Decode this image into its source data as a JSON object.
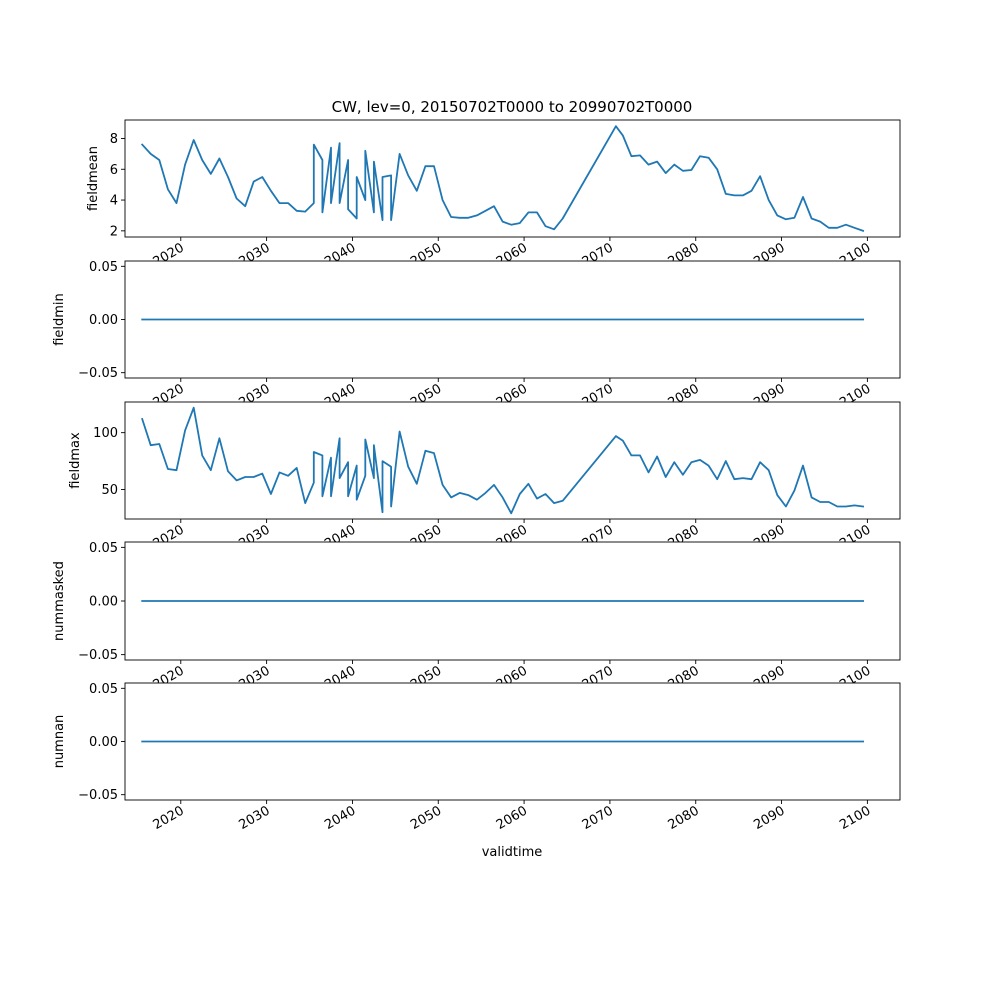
{
  "figure": {
    "title": "CW, lev=0, 20150702T0000 to 20990702T0000",
    "xlabel": "validtime",
    "line_color": "#1f77b4"
  },
  "chart_data": [
    {
      "type": "line",
      "ylabel": "fieldmean",
      "xlim": [
        2013.5,
        2103.8
      ],
      "ylim": [
        1.6,
        9.2
      ],
      "yticks": [
        2,
        4,
        6,
        8
      ],
      "ytick_labels": [
        "2",
        "4",
        "6",
        "8"
      ],
      "xticks": [
        2020,
        2030,
        2040,
        2050,
        2060,
        2070,
        2080,
        2090,
        2100
      ],
      "xtick_labels": [
        "2020",
        "2030",
        "2040",
        "2050",
        "2060",
        "2070",
        "2080",
        "2090",
        "2100"
      ],
      "x": [
        2015.5,
        2016.5,
        2017.5,
        2018.5,
        2019.5,
        2020.5,
        2021.5,
        2022.5,
        2023.5,
        2024.5,
        2025.5,
        2026.5,
        2027.5,
        2028.5,
        2029.5,
        2030.5,
        2031.5,
        2032.5,
        2033.5,
        2034.5,
        2035.5,
        2035.5,
        2036.5,
        2036.5,
        2037.5,
        2037.5,
        2038.5,
        2038.5,
        2039.5,
        2039.5,
        2040.5,
        2040.5,
        2041.5,
        2041.5,
        2042.5,
        2042.5,
        2043.5,
        2043.5,
        2044.5,
        2044.5,
        2045.5,
        2046.5,
        2047.5,
        2048.5,
        2049.5,
        2050.5,
        2051.5,
        2052.5,
        2053.5,
        2054.5,
        2055.5,
        2056.5,
        2057.5,
        2058.5,
        2059.5,
        2060.5,
        2061.5,
        2062.5,
        2063.5,
        2064.5,
        2070.7,
        2071.5,
        2072.5,
        2073.5,
        2074.5,
        2075.5,
        2076.5,
        2077.5,
        2078.5,
        2079.5,
        2080.5,
        2081.5,
        2082.5,
        2083.5,
        2084.5,
        2085.5,
        2086.5,
        2087.5,
        2088.5,
        2089.5,
        2090.5,
        2091.5,
        2092.5,
        2093.5,
        2094.5,
        2095.5,
        2096.5,
        2097.5,
        2098.5,
        2099.5
      ],
      "y": [
        7.6,
        7.0,
        6.6,
        4.7,
        3.8,
        6.3,
        7.9,
        6.6,
        5.7,
        6.7,
        5.5,
        4.1,
        3.6,
        5.2,
        5.5,
        4.6,
        3.8,
        3.8,
        3.3,
        3.25,
        3.8,
        7.6,
        6.6,
        3.2,
        7.4,
        3.8,
        7.7,
        3.8,
        6.6,
        3.4,
        2.8,
        5.5,
        4.0,
        7.2,
        3.2,
        6.5,
        2.7,
        5.5,
        5.6,
        2.7,
        7.0,
        5.6,
        4.6,
        6.2,
        6.2,
        4.0,
        2.9,
        2.85,
        2.85,
        3.0,
        3.3,
        3.6,
        2.6,
        2.4,
        2.5,
        3.2,
        3.2,
        2.3,
        2.1,
        2.8,
        8.8,
        8.2,
        6.85,
        6.9,
        6.3,
        6.5,
        5.75,
        6.3,
        5.9,
        5.95,
        6.85,
        6.75,
        6.0,
        4.4,
        4.3,
        4.3,
        4.6,
        5.55,
        4.0,
        3.0,
        2.75,
        2.85,
        4.2,
        2.8,
        2.6,
        2.2,
        2.2,
        2.4,
        2.2,
        2.0
      ]
    },
    {
      "type": "line",
      "ylabel": "fieldmin",
      "xlim": [
        2013.5,
        2103.8
      ],
      "ylim": [
        -0.055,
        0.055
      ],
      "yticks": [
        -0.05,
        0.0,
        0.05
      ],
      "ytick_labels": [
        "−0.05",
        "0.00",
        "0.05"
      ],
      "xticks": [
        2020,
        2030,
        2040,
        2050,
        2060,
        2070,
        2080,
        2090,
        2100
      ],
      "xtick_labels": [
        "2020",
        "2030",
        "2040",
        "2050",
        "2060",
        "2070",
        "2080",
        "2090",
        "2100"
      ],
      "x": [
        2015.5,
        2099.5
      ],
      "y": [
        0.0,
        0.0
      ]
    },
    {
      "type": "line",
      "ylabel": "fieldmax",
      "xlim": [
        2013.5,
        2103.8
      ],
      "ylim": [
        24,
        127
      ],
      "yticks": [
        50,
        100
      ],
      "ytick_labels": [
        "50",
        "100"
      ],
      "xticks": [
        2020,
        2030,
        2040,
        2050,
        2060,
        2070,
        2080,
        2090,
        2100
      ],
      "xtick_labels": [
        "2020",
        "2030",
        "2040",
        "2050",
        "2060",
        "2070",
        "2080",
        "2090",
        "2100"
      ],
      "x": [
        2015.5,
        2016.5,
        2017.5,
        2018.5,
        2019.5,
        2020.5,
        2021.5,
        2022.5,
        2023.5,
        2024.5,
        2025.5,
        2026.5,
        2027.5,
        2028.5,
        2029.5,
        2030.5,
        2031.5,
        2032.5,
        2033.5,
        2034.5,
        2035.5,
        2035.5,
        2036.5,
        2036.5,
        2037.5,
        2037.5,
        2038.5,
        2038.5,
        2039.5,
        2039.5,
        2040.5,
        2040.5,
        2041.5,
        2041.5,
        2042.5,
        2042.5,
        2043.5,
        2043.5,
        2044.5,
        2044.5,
        2045.5,
        2046.5,
        2047.5,
        2048.5,
        2049.5,
        2050.5,
        2051.5,
        2052.5,
        2053.5,
        2054.5,
        2055.5,
        2056.5,
        2057.5,
        2058.5,
        2059.5,
        2060.5,
        2061.5,
        2062.5,
        2063.5,
        2064.5,
        2070.7,
        2071.5,
        2072.5,
        2073.5,
        2074.5,
        2075.5,
        2076.5,
        2077.5,
        2078.5,
        2079.5,
        2080.5,
        2081.5,
        2082.5,
        2083.5,
        2084.5,
        2085.5,
        2086.5,
        2087.5,
        2088.5,
        2089.5,
        2090.5,
        2091.5,
        2092.5,
        2093.5,
        2094.5,
        2095.5,
        2096.5,
        2097.5,
        2098.5,
        2099.5
      ],
      "y": [
        112,
        89,
        90,
        68,
        67,
        102,
        122,
        80,
        67,
        95,
        66,
        58,
        61,
        61,
        64,
        46,
        65,
        62,
        69,
        38,
        56,
        83,
        80,
        44,
        78,
        44,
        95,
        60,
        74,
        44,
        71,
        41,
        62,
        94,
        60,
        89,
        30,
        75,
        70,
        35,
        101,
        70,
        55,
        84,
        82,
        54,
        43,
        47,
        45,
        41,
        47,
        54,
        43,
        29,
        46,
        55,
        42,
        46,
        38,
        40,
        97,
        93,
        80,
        80,
        65,
        79,
        61,
        74,
        63,
        74,
        76,
        71,
        59,
        75,
        59,
        60,
        59,
        74,
        67,
        45,
        35,
        49,
        71,
        43,
        39,
        39,
        35,
        35,
        36,
        35
      ]
    },
    {
      "type": "line",
      "ylabel": "nummasked",
      "xlim": [
        2013.5,
        2103.8
      ],
      "ylim": [
        -0.055,
        0.055
      ],
      "yticks": [
        -0.05,
        0.0,
        0.05
      ],
      "ytick_labels": [
        "−0.05",
        "0.00",
        "0.05"
      ],
      "xticks": [
        2020,
        2030,
        2040,
        2050,
        2060,
        2070,
        2080,
        2090,
        2100
      ],
      "xtick_labels": [
        "2020",
        "2030",
        "2040",
        "2050",
        "2060",
        "2070",
        "2080",
        "2090",
        "2100"
      ],
      "x": [
        2015.5,
        2099.5
      ],
      "y": [
        0.0,
        0.0
      ]
    },
    {
      "type": "line",
      "ylabel": "numnan",
      "xlim": [
        2013.5,
        2103.8
      ],
      "ylim": [
        -0.055,
        0.055
      ],
      "yticks": [
        -0.05,
        0.0,
        0.05
      ],
      "ytick_labels": [
        "−0.05",
        "0.00",
        "0.05"
      ],
      "xticks": [
        2020,
        2030,
        2040,
        2050,
        2060,
        2070,
        2080,
        2090,
        2100
      ],
      "xtick_labels": [
        "2020",
        "2030",
        "2040",
        "2050",
        "2060",
        "2070",
        "2080",
        "2090",
        "2100"
      ],
      "x": [
        2015.5,
        2099.5
      ],
      "y": [
        0.0,
        0.0
      ]
    }
  ]
}
